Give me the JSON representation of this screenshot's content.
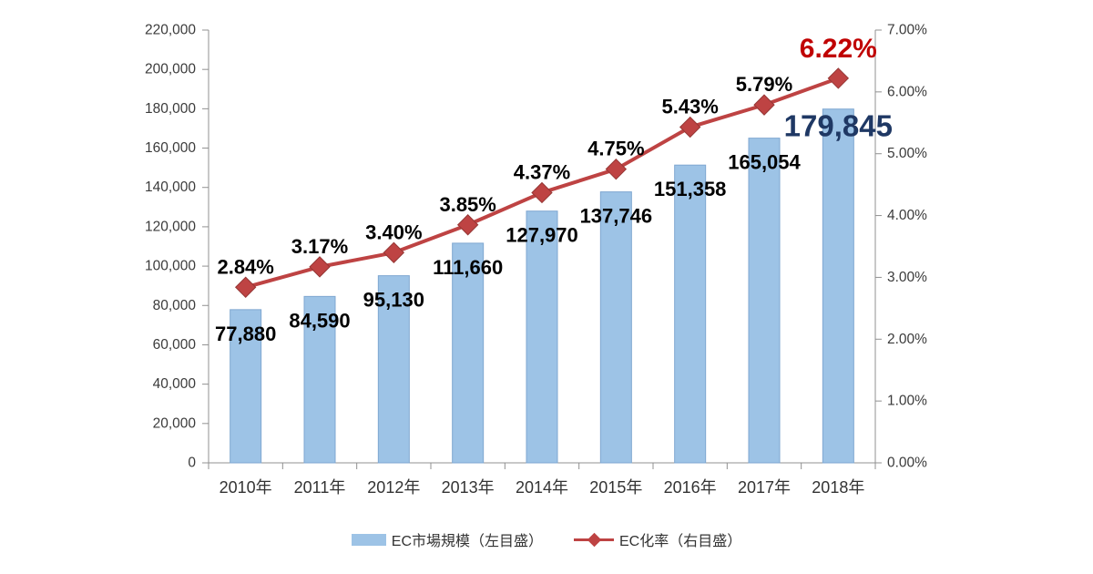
{
  "chart_data": {
    "type": "combo-bar-line",
    "categories": [
      "2010年",
      "2011年",
      "2012年",
      "2013年",
      "2014年",
      "2015年",
      "2016年",
      "2017年",
      "2018年"
    ],
    "series": [
      {
        "name": "EC市場規模（左目盛）",
        "type": "bar",
        "axis": "left",
        "color": "#9DC3E6",
        "border_color": "#7FA7D1",
        "values": [
          77880,
          84590,
          95130,
          111660,
          127970,
          137746,
          151358,
          165054,
          179845
        ],
        "labels": [
          "77,880",
          "84,590",
          "95,130",
          "111,660",
          "127,970",
          "137,746",
          "151,358",
          "165,054",
          "179,845"
        ]
      },
      {
        "name": "EC化率（右目盛）",
        "type": "line",
        "axis": "right",
        "color": "#BE4343",
        "marker_border_color": "#953735",
        "values": [
          2.84,
          3.17,
          3.4,
          3.85,
          4.37,
          4.75,
          5.43,
          5.79,
          6.22
        ],
        "labels": [
          "2.84%",
          "3.17%",
          "3.40%",
          "3.85%",
          "4.37%",
          "4.75%",
          "5.43%",
          "5.79%",
          "6.22%"
        ]
      }
    ],
    "left_axis": {
      "min": 0,
      "max": 220000,
      "step": 20000,
      "tick_labels": [
        "220,000",
        "200,000",
        "180,000",
        "160,000",
        "140,000",
        "120,000",
        "100,000",
        "80,000",
        "60,000",
        "40,000",
        "20,000",
        "0"
      ]
    },
    "right_axis": {
      "min": 0,
      "max": 7,
      "step": 1,
      "tick_labels": [
        "7.00%",
        "6.00%",
        "5.00%",
        "4.00%",
        "3.00%",
        "2.00%",
        "1.00%",
        "0.00%"
      ]
    },
    "emphasis": {
      "last_bar_label_color": "#1F3864",
      "last_line_label_color": "#C00000"
    },
    "axis_line_color": "#909090",
    "legend": [
      {
        "label": "EC市場規模（左目盛）",
        "marker": "bar-swatch"
      },
      {
        "label": "EC化率（右目盛）",
        "marker": "line-diamond"
      }
    ],
    "grid": false,
    "legend_position": "bottom-center"
  }
}
